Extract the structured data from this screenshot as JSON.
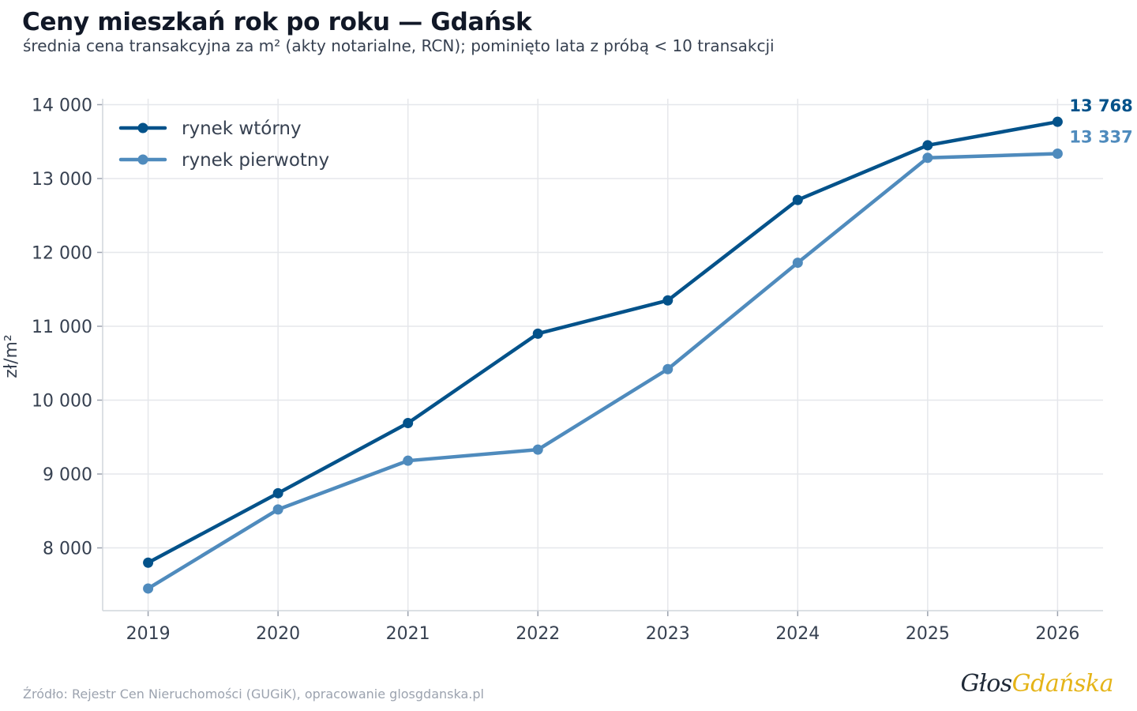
{
  "title": "Ceny mieszkań rok po roku — Gdańsk",
  "subtitle": "średnia cena transakcyjna za m² (akty notarialne, RCN); pominięto lata z próbą < 10 transakcji",
  "source": "Źródło: Rejestr Cen Nieruchomości (GUGiK), opracowanie glosgdanska.pl",
  "logo": {
    "part1": "Głos",
    "part2": "Gdańska"
  },
  "chart_data": {
    "type": "line",
    "title": "Ceny mieszkań rok po roku — Gdańsk",
    "subtitle": "średnia cena transakcyjna za m² (akty notarialne, RCN); pominięto lata z próbą < 10 transakcji",
    "xlabel": "",
    "ylabel": "zł/m²",
    "x": [
      2019,
      2020,
      2021,
      2022,
      2023,
      2024,
      2025,
      2026
    ],
    "x_tick_labels": [
      "2019",
      "2020",
      "2021",
      "2022",
      "2023",
      "2024",
      "2025",
      "2026"
    ],
    "y_ticks": [
      8000,
      9000,
      10000,
      11000,
      12000,
      13000,
      14000
    ],
    "y_tick_labels": [
      "8 000",
      "9 000",
      "10 000",
      "11 000",
      "12 000",
      "13 000",
      "14 000"
    ],
    "xlim": [
      2018.65,
      2026.35
    ],
    "ylim": [
      7150,
      14080
    ],
    "grid": true,
    "legend_position": "top-left",
    "series": [
      {
        "name": "rynek wtórny",
        "color": "#03528a",
        "values": [
          7800,
          8740,
          9690,
          10900,
          11350,
          12710,
          13450,
          13768
        ],
        "end_label": "13 768"
      },
      {
        "name": "rynek pierwotny",
        "color": "#4f8bbd",
        "values": [
          7450,
          8520,
          9180,
          9330,
          10420,
          11860,
          13280,
          13337
        ],
        "end_label": "13 337"
      }
    ]
  }
}
